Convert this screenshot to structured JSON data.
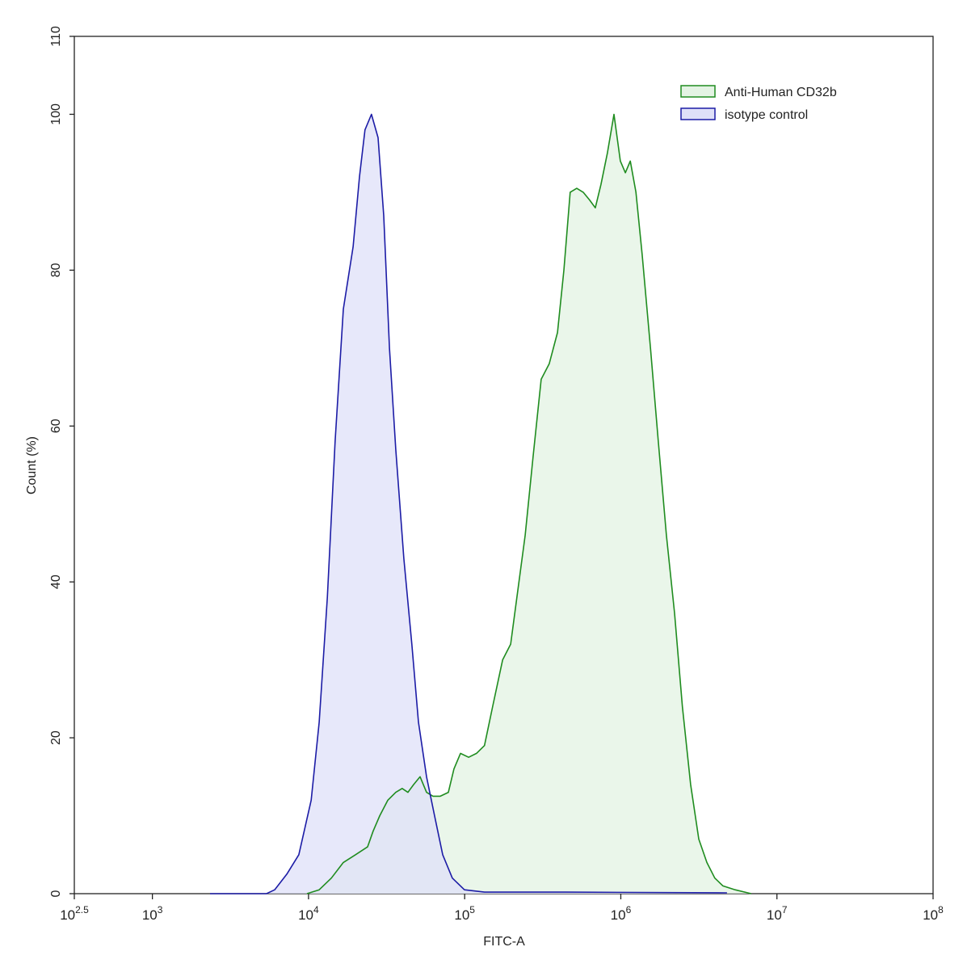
{
  "chart_data": {
    "type": "histogram-overlay",
    "x_label": "FITC-A",
    "y_label": "Count (%)",
    "xscale": "log",
    "xlim": [
      316.23,
      100000000
    ],
    "xticks": [
      {
        "value": 316.23,
        "label": "10",
        "exponent": "2.5"
      },
      {
        "value": 1000,
        "label": "10",
        "exponent": "3"
      },
      {
        "value": 10000,
        "label": "10",
        "exponent": "4"
      },
      {
        "value": 100000,
        "label": "10",
        "exponent": "5"
      },
      {
        "value": 1000000,
        "label": "10",
        "exponent": "6"
      },
      {
        "value": 10000000,
        "label": "10",
        "exponent": "7"
      },
      {
        "value": 100000000,
        "label": "10",
        "exponent": "8"
      }
    ],
    "ylim": [
      0,
      110
    ],
    "yticks": [
      0,
      20,
      40,
      60,
      80,
      100,
      110
    ],
    "legend": "upper right",
    "series": [
      {
        "name": "Anti-Human CD32b",
        "color": "#1f8c1f",
        "fill": "#e3f3e3",
        "x": [
          9770,
          11700,
          14000,
          16700,
          20000,
          23900,
          25900,
          28600,
          32200,
          36200,
          39800,
          43300,
          47100,
          51800,
          57000,
          62700,
          69800,
          78600,
          85400,
          94000,
          106000,
          119000,
          134000,
          151000,
          175000,
          197000,
          216000,
          244000,
          274000,
          309000,
          348000,
          393000,
          432000,
          474000,
          522000,
          574000,
          632000,
          687000,
          746000,
          820000,
          904000,
          993000,
          1070000,
          1150000,
          1250000,
          1370000,
          1550000,
          1740000,
          1960000,
          2210000,
          2480000,
          2800000,
          3160000,
          3560000,
          4000000,
          4510000,
          5400000,
          6840000
        ],
        "values": [
          0,
          0.5,
          2,
          4,
          5,
          6,
          8,
          10,
          12,
          13,
          13.5,
          13,
          14,
          15,
          13,
          12.5,
          12.5,
          13,
          16,
          18,
          17.5,
          18,
          19,
          24,
          30,
          32,
          38,
          46,
          56,
          66,
          68,
          72,
          80,
          90,
          90.5,
          90,
          89,
          88,
          91,
          95,
          100,
          94,
          92.5,
          94,
          90,
          82,
          70,
          58,
          46,
          36,
          24,
          14,
          7,
          4,
          2,
          1,
          0.5,
          0
        ]
      },
      {
        "name": "isotype control",
        "color": "#1c1ca6",
        "fill": "#dfe0f8",
        "x": [
          2340,
          5380,
          6070,
          7260,
          8670,
          10400,
          11700,
          13200,
          14800,
          16700,
          19300,
          21200,
          23000,
          25300,
          27900,
          30300,
          33000,
          36200,
          40800,
          45900,
          50600,
          57000,
          64100,
          72300,
          83400,
          99700,
          134000,
          442000,
          4790000
        ],
        "values": [
          0,
          0,
          0.5,
          2.5,
          5,
          12,
          22,
          38,
          58,
          75,
          83,
          92,
          98,
          100,
          97,
          87,
          70,
          57,
          43,
          32,
          22,
          15,
          10,
          5,
          2,
          0.5,
          0.2,
          0.2,
          0.1
        ]
      }
    ]
  }
}
